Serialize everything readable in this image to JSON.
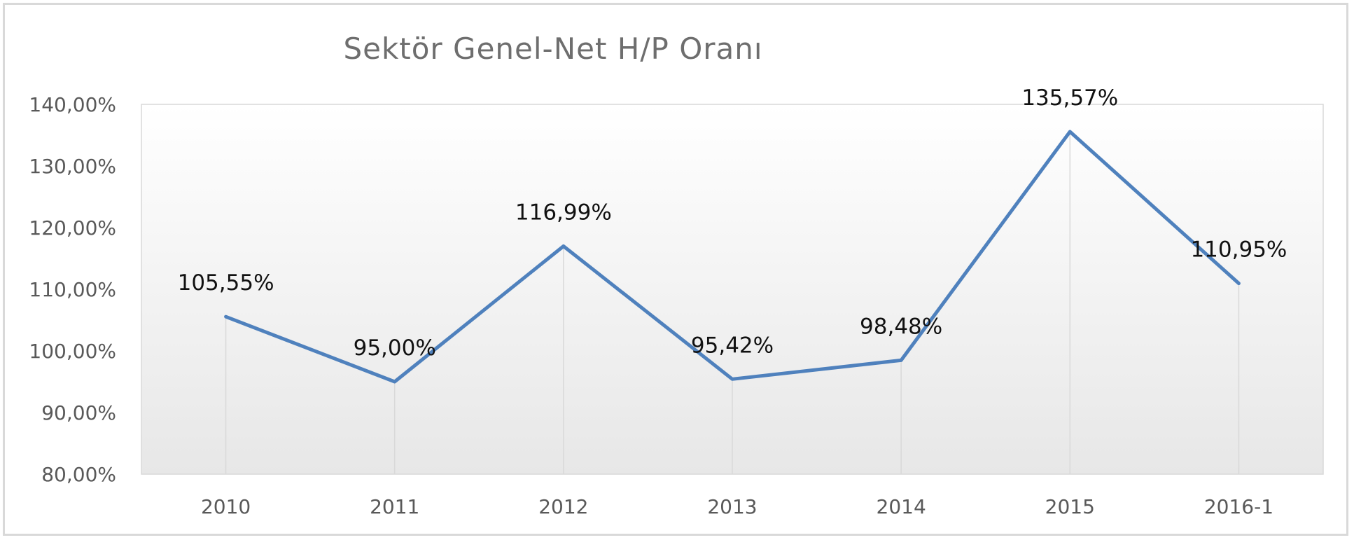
{
  "chart_data": {
    "type": "line",
    "title": "Sektör Genel-Net H/P Oranı",
    "categories": [
      "2010",
      "2011",
      "2012",
      "2013",
      "2014",
      "2015",
      "2016-1"
    ],
    "series": [
      {
        "values": [
          105.55,
          95.0,
          116.99,
          95.42,
          98.48,
          135.57,
          110.95
        ],
        "labels": [
          "105,55%",
          "95,00%",
          "116,99%",
          "95,42%",
          "98,48%",
          "135,57%",
          "110,95%"
        ],
        "color": "#4f81bd"
      }
    ],
    "ylim": [
      80,
      140
    ],
    "yticks": [
      80,
      90,
      100,
      110,
      120,
      130,
      140
    ],
    "ytick_labels": [
      "80,00%",
      "90,00%",
      "100,00%",
      "110,00%",
      "120,00%",
      "130,00%",
      "140,00%"
    ],
    "grid": "vertical drop lines",
    "legend": "none"
  }
}
